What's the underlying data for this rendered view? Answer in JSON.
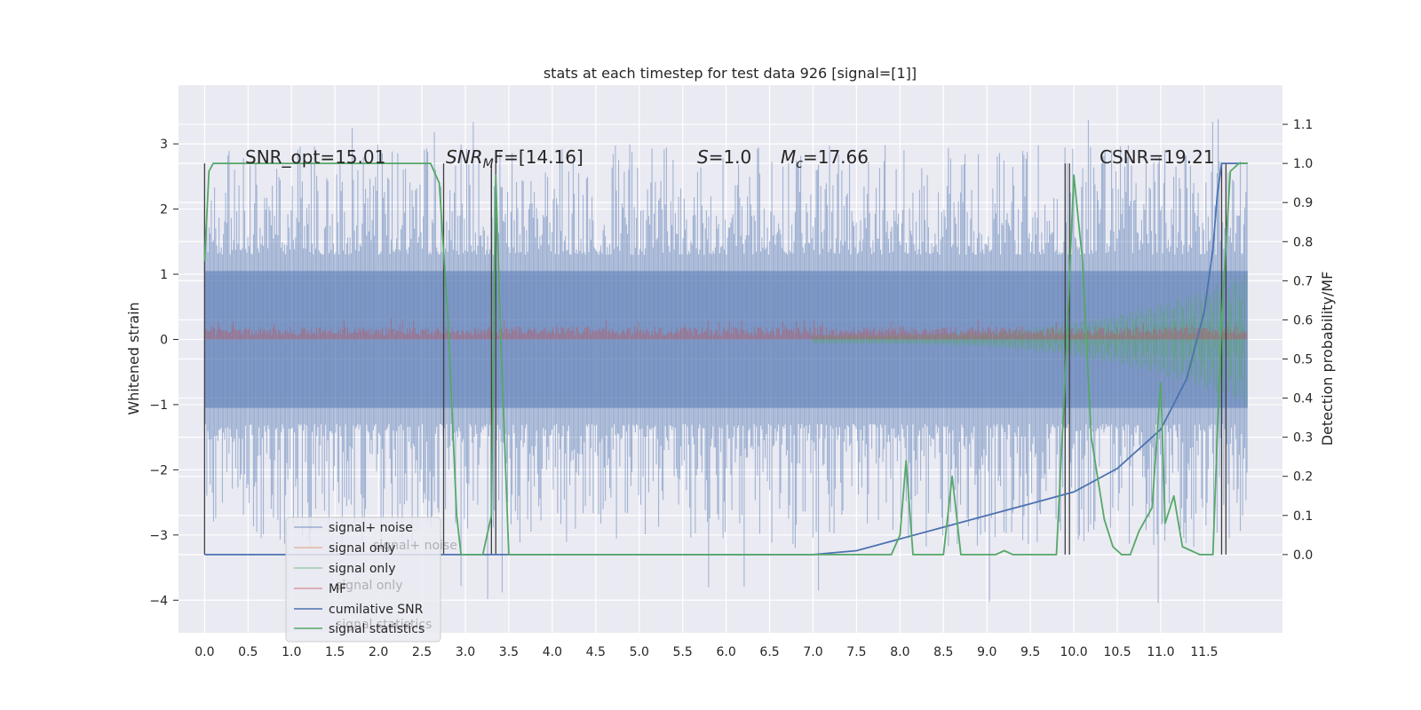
{
  "chart_data": {
    "type": "line",
    "title": "stats at each timestep for test data 926 [signal=[1]]",
    "ylabel": "Whitened strain",
    "y2label": "Detection probability/MF",
    "xlim": [
      -0.3,
      12.4
    ],
    "ylim": [
      -4.5,
      3.9
    ],
    "y2lim": [
      -0.2,
      1.2
    ],
    "grid": true,
    "x_ticks": [
      "0.0",
      "0.5",
      "1.0",
      "1.5",
      "2.0",
      "2.5",
      "3.0",
      "3.5",
      "4.0",
      "4.5",
      "5.0",
      "5.5",
      "6.0",
      "6.5",
      "7.0",
      "7.5",
      "8.0",
      "8.5",
      "9.0",
      "9.5",
      "10.0",
      "10.5",
      "11.0",
      "11.5"
    ],
    "y_ticks": [
      "3",
      "2",
      "1",
      "0",
      "−1",
      "−2",
      "−3",
      "−4"
    ],
    "y2_ticks": [
      "1.1",
      "1.0",
      "0.9",
      "0.8",
      "0.7",
      "0.6",
      "0.5",
      "0.4",
      "0.3",
      "0.2",
      "0.1",
      "0.0"
    ],
    "annotations": {
      "snr_opt": "SNR_opt=15.01",
      "snr_mf_main": "SNR",
      "snr_mf_sub": "M",
      "snr_mf_tail": "F=[14.16]",
      "s_var": "S",
      "s_val": "=1.0",
      "mc_var": "M",
      "mc_sub": "c",
      "mc_val": "=17.66",
      "csnr": "CSNR=19.21"
    },
    "legend_placement": "lower-left",
    "series": [
      {
        "name": "signal+ noise",
        "color": "#4c72b0",
        "alpha": 0.5
      },
      {
        "name": "signal only",
        "color": "#dd8452",
        "alpha": 0.5
      },
      {
        "name": "signal only",
        "color": "#55a868",
        "alpha": 0.5
      },
      {
        "name": "MF",
        "color": "#c44e52",
        "alpha": 0.5
      },
      {
        "name": "cumilative SNR",
        "color": "#4c72b0"
      },
      {
        "name": "signal statistics",
        "color": "#55a868"
      }
    ],
    "legend_ghost": [
      "signal+ noise",
      "signal only",
      "signal statistics"
    ],
    "noise": {
      "t_start": 0.0,
      "t_end": 12.0,
      "low": -4.1,
      "high": 3.45,
      "core": 1.05
    },
    "mf_band": {
      "low": 0.0,
      "high": 0.2
    },
    "chirp": {
      "t_start": 7.0,
      "t_end": 11.98,
      "amp_end": 0.95
    },
    "cumulative_snr": [
      [
        0.0,
        0.0
      ],
      [
        6.0,
        0.0
      ],
      [
        7.0,
        0.0
      ],
      [
        7.5,
        0.01
      ],
      [
        8.0,
        0.04
      ],
      [
        8.5,
        0.07
      ],
      [
        9.0,
        0.1
      ],
      [
        9.5,
        0.13
      ],
      [
        10.0,
        0.16
      ],
      [
        10.5,
        0.22
      ],
      [
        11.0,
        0.32
      ],
      [
        11.3,
        0.45
      ],
      [
        11.5,
        0.62
      ],
      [
        11.6,
        0.78
      ],
      [
        11.65,
        0.92
      ],
      [
        11.7,
        1.0
      ],
      [
        12.0,
        1.0
      ]
    ],
    "signal_statistics": [
      [
        0.0,
        0.75
      ],
      [
        0.05,
        0.98
      ],
      [
        0.1,
        1.0
      ],
      [
        2.6,
        1.0
      ],
      [
        2.7,
        0.95
      ],
      [
        2.8,
        0.6
      ],
      [
        2.9,
        0.1
      ],
      [
        2.95,
        0.0
      ],
      [
        3.2,
        0.0
      ],
      [
        3.3,
        0.1
      ],
      [
        3.35,
        0.97
      ],
      [
        3.4,
        0.6
      ],
      [
        3.5,
        0.0
      ],
      [
        7.9,
        0.0
      ],
      [
        8.0,
        0.05
      ],
      [
        8.07,
        0.24
      ],
      [
        8.15,
        0.0
      ],
      [
        8.5,
        0.0
      ],
      [
        8.6,
        0.2
      ],
      [
        8.7,
        0.0
      ],
      [
        9.1,
        0.0
      ],
      [
        9.2,
        0.01
      ],
      [
        9.3,
        0.0
      ],
      [
        9.8,
        0.0
      ],
      [
        9.9,
        0.45
      ],
      [
        10.0,
        0.97
      ],
      [
        10.1,
        0.75
      ],
      [
        10.2,
        0.3
      ],
      [
        10.35,
        0.09
      ],
      [
        10.45,
        0.02
      ],
      [
        10.55,
        0.0
      ],
      [
        10.65,
        0.0
      ],
      [
        10.75,
        0.06
      ],
      [
        10.9,
        0.12
      ],
      [
        11.0,
        0.44
      ],
      [
        11.05,
        0.08
      ],
      [
        11.15,
        0.15
      ],
      [
        11.25,
        0.02
      ],
      [
        11.35,
        0.01
      ],
      [
        11.45,
        0.0
      ],
      [
        11.6,
        0.0
      ],
      [
        11.7,
        0.6
      ],
      [
        11.8,
        0.98
      ],
      [
        11.9,
        1.0
      ],
      [
        12.0,
        1.0
      ]
    ],
    "vertical_lines": [
      0.0,
      2.75,
      3.3,
      3.35,
      9.9,
      9.95,
      11.7,
      11.75
    ]
  }
}
